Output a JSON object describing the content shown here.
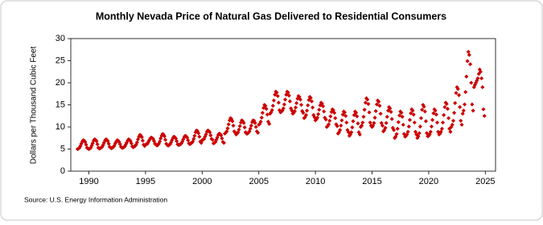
{
  "chart_data": {
    "type": "scatter",
    "title": "Monthly Nevada Price of Natural Gas Delivered to Residential Consumers",
    "y_label": "Dollars per Thousand Cubic Feet",
    "source": "Source: U.S. Energy Information Administration",
    "xlim": [
      1988.4,
      2025.9
    ],
    "xticks": [
      1990,
      1995,
      2000,
      2005,
      2010,
      2015,
      2020,
      2025
    ],
    "ylim": [
      0,
      30
    ],
    "yticks": [
      0,
      5,
      10,
      15,
      20,
      25,
      30
    ],
    "grid": false,
    "series": [
      {
        "color": "#cc0000",
        "x": [
          1989.0,
          1989.08,
          1989.17,
          1989.25,
          1989.33,
          1989.42,
          1989.5,
          1989.58,
          1989.67,
          1989.75,
          1989.83,
          1989.92,
          1990.0,
          1990.08,
          1990.17,
          1990.25,
          1990.33,
          1990.42,
          1990.5,
          1990.58,
          1990.67,
          1990.75,
          1990.83,
          1990.92,
          1991.0,
          1991.08,
          1991.17,
          1991.25,
          1991.33,
          1991.42,
          1991.5,
          1991.58,
          1991.67,
          1991.75,
          1991.83,
          1991.92,
          1992.0,
          1992.08,
          1992.17,
          1992.25,
          1992.33,
          1992.42,
          1992.5,
          1992.58,
          1992.67,
          1992.75,
          1992.83,
          1992.92,
          1993.0,
          1993.08,
          1993.17,
          1993.25,
          1993.33,
          1993.42,
          1993.5,
          1993.58,
          1993.67,
          1993.75,
          1993.83,
          1993.92,
          1994.0,
          1994.08,
          1994.17,
          1994.25,
          1994.33,
          1994.42,
          1994.5,
          1994.58,
          1994.67,
          1994.75,
          1994.83,
          1994.92,
          1995.0,
          1995.08,
          1995.17,
          1995.25,
          1995.33,
          1995.42,
          1995.5,
          1995.58,
          1995.67,
          1995.75,
          1995.83,
          1995.92,
          1996.0,
          1996.08,
          1996.17,
          1996.25,
          1996.33,
          1996.42,
          1996.5,
          1996.58,
          1996.67,
          1996.75,
          1996.83,
          1996.92,
          1997.0,
          1997.08,
          1997.17,
          1997.25,
          1997.33,
          1997.42,
          1997.5,
          1997.58,
          1997.67,
          1997.75,
          1997.83,
          1997.92,
          1998.0,
          1998.08,
          1998.17,
          1998.25,
          1998.33,
          1998.42,
          1998.5,
          1998.58,
          1998.67,
          1998.75,
          1998.83,
          1998.92,
          1999.0,
          1999.08,
          1999.17,
          1999.25,
          1999.33,
          1999.42,
          1999.5,
          1999.58,
          1999.67,
          1999.75,
          1999.83,
          1999.92,
          2000.0,
          2000.08,
          2000.17,
          2000.25,
          2000.33,
          2000.42,
          2000.5,
          2000.58,
          2000.67,
          2000.75,
          2000.83,
          2000.92,
          2001.0,
          2001.08,
          2001.17,
          2001.25,
          2001.33,
          2001.42,
          2001.5,
          2001.58,
          2001.67,
          2001.75,
          2001.83,
          2001.92,
          2002.0,
          2002.08,
          2002.17,
          2002.25,
          2002.33,
          2002.42,
          2002.5,
          2002.58,
          2002.67,
          2002.75,
          2002.83,
          2002.92,
          2003.0,
          2003.08,
          2003.17,
          2003.25,
          2003.33,
          2003.42,
          2003.5,
          2003.58,
          2003.67,
          2003.75,
          2003.83,
          2003.92,
          2004.0,
          2004.08,
          2004.17,
          2004.25,
          2004.33,
          2004.42,
          2004.5,
          2004.58,
          2004.67,
          2004.75,
          2004.83,
          2004.92,
          2005.0,
          2005.08,
          2005.17,
          2005.25,
          2005.33,
          2005.42,
          2005.5,
          2005.58,
          2005.67,
          2005.75,
          2005.83,
          2005.92,
          2006.0,
          2006.08,
          2006.17,
          2006.25,
          2006.33,
          2006.42,
          2006.5,
          2006.58,
          2006.67,
          2006.75,
          2006.83,
          2006.92,
          2007.0,
          2007.08,
          2007.17,
          2007.25,
          2007.33,
          2007.42,
          2007.5,
          2007.58,
          2007.67,
          2007.75,
          2007.83,
          2007.92,
          2008.0,
          2008.08,
          2008.17,
          2008.25,
          2008.33,
          2008.42,
          2008.5,
          2008.58,
          2008.67,
          2008.75,
          2008.83,
          2008.92,
          2009.0,
          2009.08,
          2009.17,
          2009.25,
          2009.33,
          2009.42,
          2009.5,
          2009.58,
          2009.67,
          2009.75,
          2009.83,
          2009.92,
          2010.0,
          2010.08,
          2010.17,
          2010.25,
          2010.33,
          2010.42,
          2010.5,
          2010.58,
          2010.67,
          2010.75,
          2010.83,
          2010.92,
          2011.0,
          2011.08,
          2011.17,
          2011.25,
          2011.33,
          2011.42,
          2011.5,
          2011.58,
          2011.67,
          2011.75,
          2011.83,
          2011.92,
          2012.0,
          2012.08,
          2012.17,
          2012.25,
          2012.33,
          2012.42,
          2012.5,
          2012.58,
          2012.67,
          2012.75,
          2012.83,
          2012.92,
          2013.0,
          2013.08,
          2013.17,
          2013.25,
          2013.33,
          2013.42,
          2013.5,
          2013.58,
          2013.67,
          2013.75,
          2013.83,
          2013.92,
          2014.0,
          2014.08,
          2014.17,
          2014.25,
          2014.33,
          2014.42,
          2014.5,
          2014.58,
          2014.67,
          2014.75,
          2014.83,
          2014.92,
          2015.0,
          2015.08,
          2015.17,
          2015.25,
          2015.33,
          2015.42,
          2015.5,
          2015.58,
          2015.67,
          2015.75,
          2015.83,
          2015.92,
          2016.0,
          2016.08,
          2016.17,
          2016.25,
          2016.33,
          2016.42,
          2016.5,
          2016.58,
          2016.67,
          2016.75,
          2016.83,
          2016.92,
          2017.0,
          2017.08,
          2017.17,
          2017.25,
          2017.33,
          2017.42,
          2017.5,
          2017.58,
          2017.67,
          2017.75,
          2017.83,
          2017.92,
          2018.0,
          2018.08,
          2018.17,
          2018.25,
          2018.33,
          2018.42,
          2018.5,
          2018.58,
          2018.67,
          2018.75,
          2018.83,
          2018.92,
          2019.0,
          2019.08,
          2019.17,
          2019.25,
          2019.33,
          2019.42,
          2019.5,
          2019.58,
          2019.67,
          2019.75,
          2019.83,
          2019.92,
          2020.0,
          2020.08,
          2020.17,
          2020.25,
          2020.33,
          2020.42,
          2020.5,
          2020.58,
          2020.67,
          2020.75,
          2020.83,
          2020.92,
          2021.0,
          2021.08,
          2021.17,
          2021.25,
          2021.33,
          2021.42,
          2021.5,
          2021.58,
          2021.67,
          2021.75,
          2021.83,
          2021.92,
          2022.0,
          2022.08,
          2022.17,
          2022.25,
          2022.33,
          2022.42,
          2022.5,
          2022.58,
          2022.67,
          2022.75,
          2022.83,
          2022.92,
          2023.0,
          2023.08,
          2023.17,
          2023.25,
          2023.33,
          2023.42,
          2023.5,
          2023.58,
          2023.67,
          2023.75,
          2023.83,
          2023.92,
          2024.0,
          2024.08,
          2024.17,
          2024.25,
          2024.33,
          2024.42,
          2024.5,
          2024.58,
          2024.67,
          2024.75,
          2024.83,
          2024.92
        ],
        "values": [
          5.0,
          5.1,
          5.3,
          5.7,
          6.2,
          6.7,
          7.0,
          6.9,
          6.6,
          6.0,
          5.3,
          5.1,
          5.0,
          5.1,
          5.3,
          5.8,
          6.3,
          6.9,
          7.2,
          7.1,
          6.8,
          6.1,
          5.3,
          5.1,
          5.2,
          5.3,
          5.5,
          5.9,
          6.4,
          6.9,
          7.2,
          7.1,
          6.8,
          6.2,
          5.5,
          5.3,
          5.2,
          5.3,
          5.5,
          5.8,
          6.3,
          6.7,
          7.0,
          6.9,
          6.6,
          6.1,
          5.5,
          5.3,
          5.3,
          5.4,
          5.6,
          6.0,
          6.4,
          6.9,
          7.2,
          7.1,
          6.8,
          6.3,
          5.6,
          5.4,
          5.6,
          5.7,
          6.0,
          6.5,
          7.2,
          7.8,
          8.2,
          8.1,
          7.7,
          6.9,
          6.0,
          5.7,
          6.0,
          6.1,
          6.2,
          6.6,
          7.0,
          7.4,
          7.6,
          7.5,
          7.3,
          6.8,
          6.2,
          6.1,
          5.8,
          5.9,
          6.2,
          6.7,
          7.4,
          8.0,
          8.4,
          8.3,
          7.9,
          7.1,
          6.2,
          5.9,
          5.8,
          5.9,
          6.1,
          6.5,
          7.0,
          7.5,
          7.8,
          7.7,
          7.4,
          6.8,
          6.1,
          5.9,
          6.0,
          6.1,
          6.3,
          6.7,
          7.2,
          7.7,
          8.0,
          7.9,
          7.6,
          7.0,
          6.3,
          6.1,
          6.3,
          6.4,
          6.7,
          7.3,
          8.0,
          8.8,
          9.2,
          9.1,
          8.6,
          7.8,
          6.7,
          6.4,
          7.0,
          7.1,
          7.3,
          7.8,
          8.3,
          8.9,
          9.2,
          9.1,
          8.8,
          8.1,
          7.3,
          7.1,
          6.3,
          6.4,
          6.6,
          7.1,
          7.6,
          8.2,
          8.5,
          8.4,
          8.1,
          7.4,
          6.6,
          6.4,
          8.5,
          8.7,
          9.0,
          9.7,
          10.6,
          11.5,
          12.0,
          11.8,
          11.3,
          10.3,
          9.0,
          8.7,
          8.3,
          8.5,
          8.8,
          9.4,
          10.2,
          11.0,
          11.5,
          11.3,
          10.9,
          9.9,
          8.8,
          8.5,
          8.5,
          8.7,
          9.0,
          9.6,
          10.3,
          11.1,
          11.5,
          11.4,
          10.9,
          10.0,
          9.0,
          8.7,
          10.5,
          10.7,
          11.2,
          12.1,
          13.2,
          14.3,
          15.0,
          14.8,
          14.1,
          12.8,
          11.2,
          10.7,
          13.0,
          13.3,
          13.8,
          14.8,
          16.0,
          17.3,
          18.0,
          17.8,
          17.0,
          15.5,
          13.8,
          13.3,
          13.5,
          13.7,
          14.2,
          15.1,
          16.2,
          17.3,
          18.0,
          17.8,
          17.1,
          15.8,
          14.2,
          13.7,
          13.0,
          13.2,
          13.6,
          14.4,
          15.4,
          16.4,
          17.0,
          16.8,
          16.2,
          15.0,
          13.6,
          13.2,
          12.0,
          12.2,
          12.7,
          13.7,
          14.9,
          16.1,
          16.8,
          16.6,
          15.8,
          14.4,
          12.7,
          12.2,
          11.5,
          11.7,
          12.1,
          12.9,
          13.9,
          14.9,
          15.5,
          15.3,
          14.7,
          13.5,
          12.1,
          11.7,
          10.0,
          10.2,
          10.6,
          11.4,
          12.4,
          13.4,
          14.0,
          13.8,
          13.2,
          12.0,
          10.6,
          10.2,
          8.5,
          8.8,
          9.3,
          10.3,
          11.5,
          12.8,
          13.5,
          13.3,
          12.5,
          11.0,
          9.3,
          8.8,
          8.0,
          8.3,
          8.8,
          9.9,
          11.3,
          12.7,
          13.5,
          13.2,
          12.4,
          10.8,
          8.8,
          8.3,
          10.0,
          10.3,
          11.0,
          12.3,
          13.9,
          15.5,
          16.5,
          16.2,
          15.2,
          13.3,
          11.0,
          10.3,
          10.0,
          10.3,
          10.9,
          12.1,
          13.6,
          15.1,
          16.0,
          15.7,
          14.8,
          13.0,
          10.9,
          10.3,
          9.0,
          9.3,
          9.8,
          10.9,
          12.3,
          13.7,
          14.5,
          14.2,
          13.4,
          11.8,
          9.8,
          9.3,
          7.5,
          7.8,
          8.4,
          9.6,
          11.1,
          12.6,
          13.5,
          13.2,
          12.3,
          10.5,
          8.4,
          7.8,
          8.0,
          8.3,
          8.9,
          10.1,
          11.6,
          13.1,
          14.0,
          13.7,
          12.8,
          11.0,
          8.9,
          8.3,
          7.5,
          7.9,
          8.6,
          10.1,
          12.0,
          13.9,
          15.0,
          14.6,
          13.5,
          11.3,
          8.6,
          7.9,
          8.0,
          8.3,
          8.9,
          10.1,
          11.6,
          13.1,
          14.0,
          13.7,
          12.8,
          11.0,
          8.9,
          8.3,
          8.5,
          8.9,
          9.6,
          11.0,
          12.7,
          14.5,
          15.5,
          15.2,
          14.1,
          12.0,
          9.6,
          8.9,
          10.0,
          10.5,
          11.4,
          13.2,
          15.4,
          17.7,
          19.0,
          18.6,
          17.2,
          14.5,
          11.4,
          10.5,
          13.0,
          13.7,
          15.1,
          17.9,
          21.4,
          24.9,
          27.0,
          26.3,
          24.2,
          20.0,
          15.1,
          13.7,
          19.0,
          19.5,
          20.0,
          20.5,
          21.0,
          22.0,
          23.0,
          22.5,
          21.0,
          19.0,
          14.0,
          12.5
        ]
      }
    ]
  }
}
